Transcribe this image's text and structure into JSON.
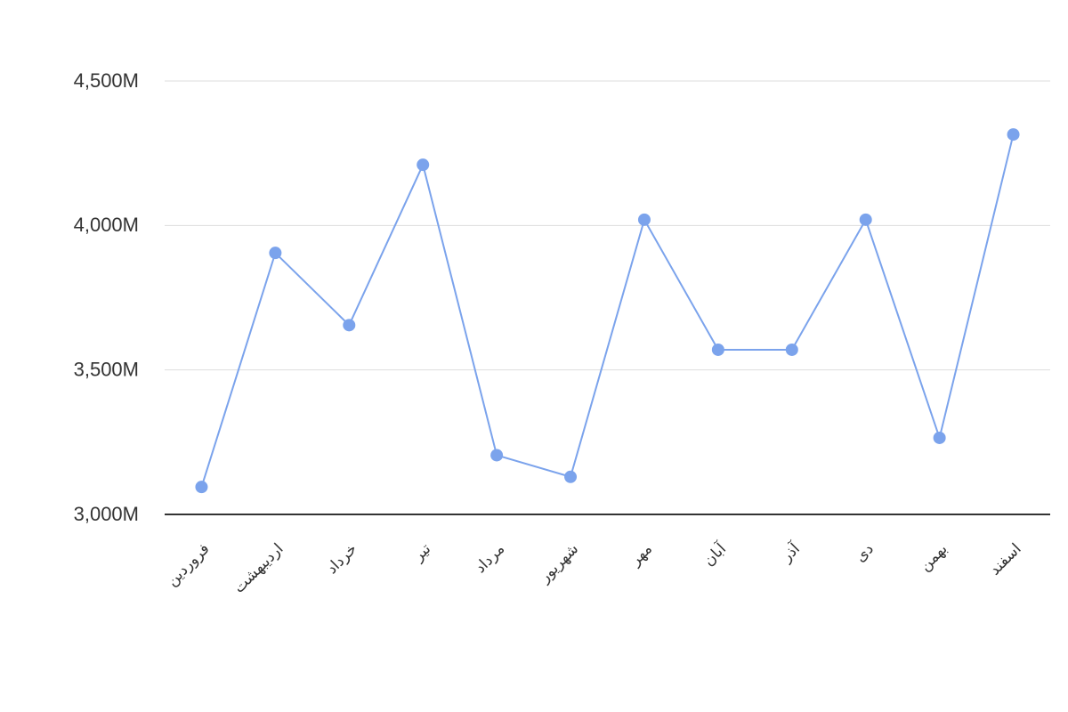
{
  "chart_data": {
    "type": "line",
    "categories": [
      "فروردین",
      "اردیبهشت",
      "خرداد",
      "تیر",
      "مرداد",
      "شهریور",
      "مهر",
      "آبان",
      "آذر",
      "دی",
      "بهمن",
      "اسفند"
    ],
    "values": [
      3095,
      3905,
      3655,
      4210,
      3205,
      3130,
      4020,
      3570,
      3570,
      4020,
      3265,
      4315
    ],
    "color": "#7ba3ec",
    "ylim": [
      3000,
      4500
    ],
    "yticks": [
      {
        "value": 3000,
        "label": "3,000M"
      },
      {
        "value": 3500,
        "label": "3,500M"
      },
      {
        "value": 4000,
        "label": "4,000M"
      },
      {
        "value": 4500,
        "label": "4,500M"
      }
    ],
    "grid": true
  }
}
